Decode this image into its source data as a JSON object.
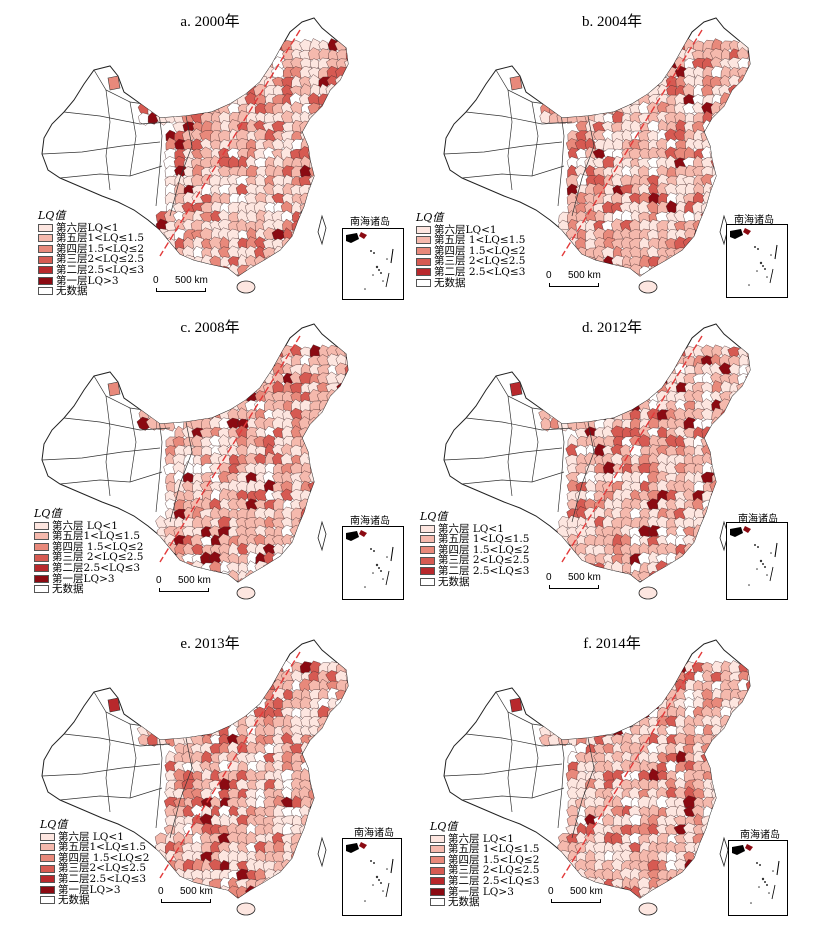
{
  "colors": {
    "none": "#ffffff",
    "lq_lt1": "#fde6e0",
    "lq_1_15": "#f5b9ad",
    "lq_15_2": "#e8897b",
    "lq_2_25": "#d65a52",
    "lq_25_3": "#b8282c",
    "lq_gt3": "#8b0a12",
    "hu_line": "#e23a3a"
  },
  "panels": [
    {
      "title": "a. 2000年",
      "legend_title": "LQ值",
      "legend": [
        "第六层LQ<1",
        "第五层1<LQ≤1.5",
        "第四层1.5<LQ≤2",
        "第三层2<LQ≤2.5",
        "第二层2.5<LQ≤3",
        "第一层LQ>3",
        "无数据"
      ],
      "inset_title": "南海诸岛",
      "scale_zero": "0",
      "scale_label": "500 km"
    },
    {
      "title": "b. 2004年",
      "legend_title": "LQ值",
      "legend": [
        "第六层LQ<1",
        "第五层 1<LQ≤1.5",
        "第四层 1.5<LQ≤2",
        "第三层 2<LQ≤2.5",
        "第二层 2.5<LQ≤3",
        "无数据"
      ],
      "inset_title": "南海诸岛",
      "scale_zero": "0",
      "scale_label": "500 km"
    },
    {
      "title": "c. 2008年",
      "legend_title": "LQ值",
      "legend": [
        "第六层 LQ<1",
        "第五层1<LQ≤1.5",
        "第四层 1.5<LQ≤2",
        "第三层 2<LQ≤2.5",
        "第二层2.5<LQ≤3",
        "第一层LQ>3",
        "无数据"
      ],
      "inset_title": "南海诸岛",
      "scale_zero": "0",
      "scale_label": "500 km"
    },
    {
      "title": "d. 2012年",
      "legend_title": "LQ值",
      "legend": [
        "第六层 LQ<1",
        "第五层 1<LQ≤1.5",
        "第四层 1.5<LQ≤2",
        "第三层 2<LQ≤2.5",
        "第二层 2.5<LQ≤3",
        "无数据"
      ],
      "inset_title": "南海诸岛",
      "scale_zero": "0",
      "scale_label": "500 km"
    },
    {
      "title": "e. 2013年",
      "legend_title": "LQ值",
      "legend": [
        "第六层 LQ<1",
        "第五层1<LQ≤1.5",
        "第四层 1.5<LQ≤2",
        "第三层2<LQ≤2.5",
        "第二层2.5<LQ≤3",
        "第一层LQ>3",
        "无数据"
      ],
      "inset_title": "南海诸岛",
      "scale_zero": "0",
      "scale_label": "500 km"
    },
    {
      "title": "f. 2014年",
      "legend_title": "LQ值",
      "legend": [
        "第六层 LQ<1",
        "第五层 1<LQ≤1.5",
        "第四层 1.5<LQ≤2",
        "第三层 2<LQ≤2.5",
        "第二层 2.5<LQ≤3",
        "第一层 LQ>3",
        "无数据"
      ],
      "inset_title": "南海诸岛",
      "scale_zero": "0",
      "scale_label": "500 km"
    }
  ]
}
